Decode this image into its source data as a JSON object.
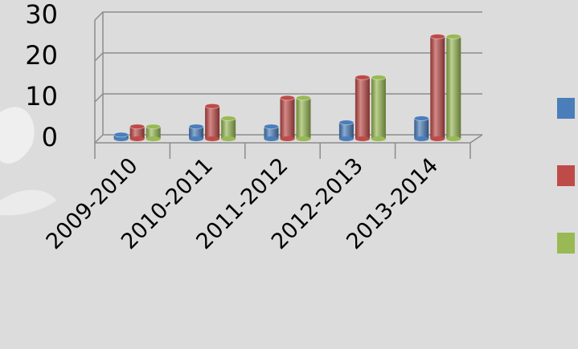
{
  "chart_data": {
    "type": "bar3d",
    "categories": [
      "2009-2010",
      "2010-2011",
      "2011-2012",
      "2012-2013",
      "2013-2014"
    ],
    "series": [
      {
        "color": "#4a7ebb",
        "values": [
          1,
          3,
          3,
          4,
          5
        ]
      },
      {
        "color": "#be4b48",
        "values": [
          3,
          8,
          10,
          15,
          25
        ]
      },
      {
        "color": "#98b954",
        "values": [
          3,
          5,
          10,
          15,
          25
        ]
      }
    ],
    "ylim": [
      0,
      30
    ],
    "yticks": [
      0,
      10,
      20,
      30
    ],
    "grid": true
  }
}
